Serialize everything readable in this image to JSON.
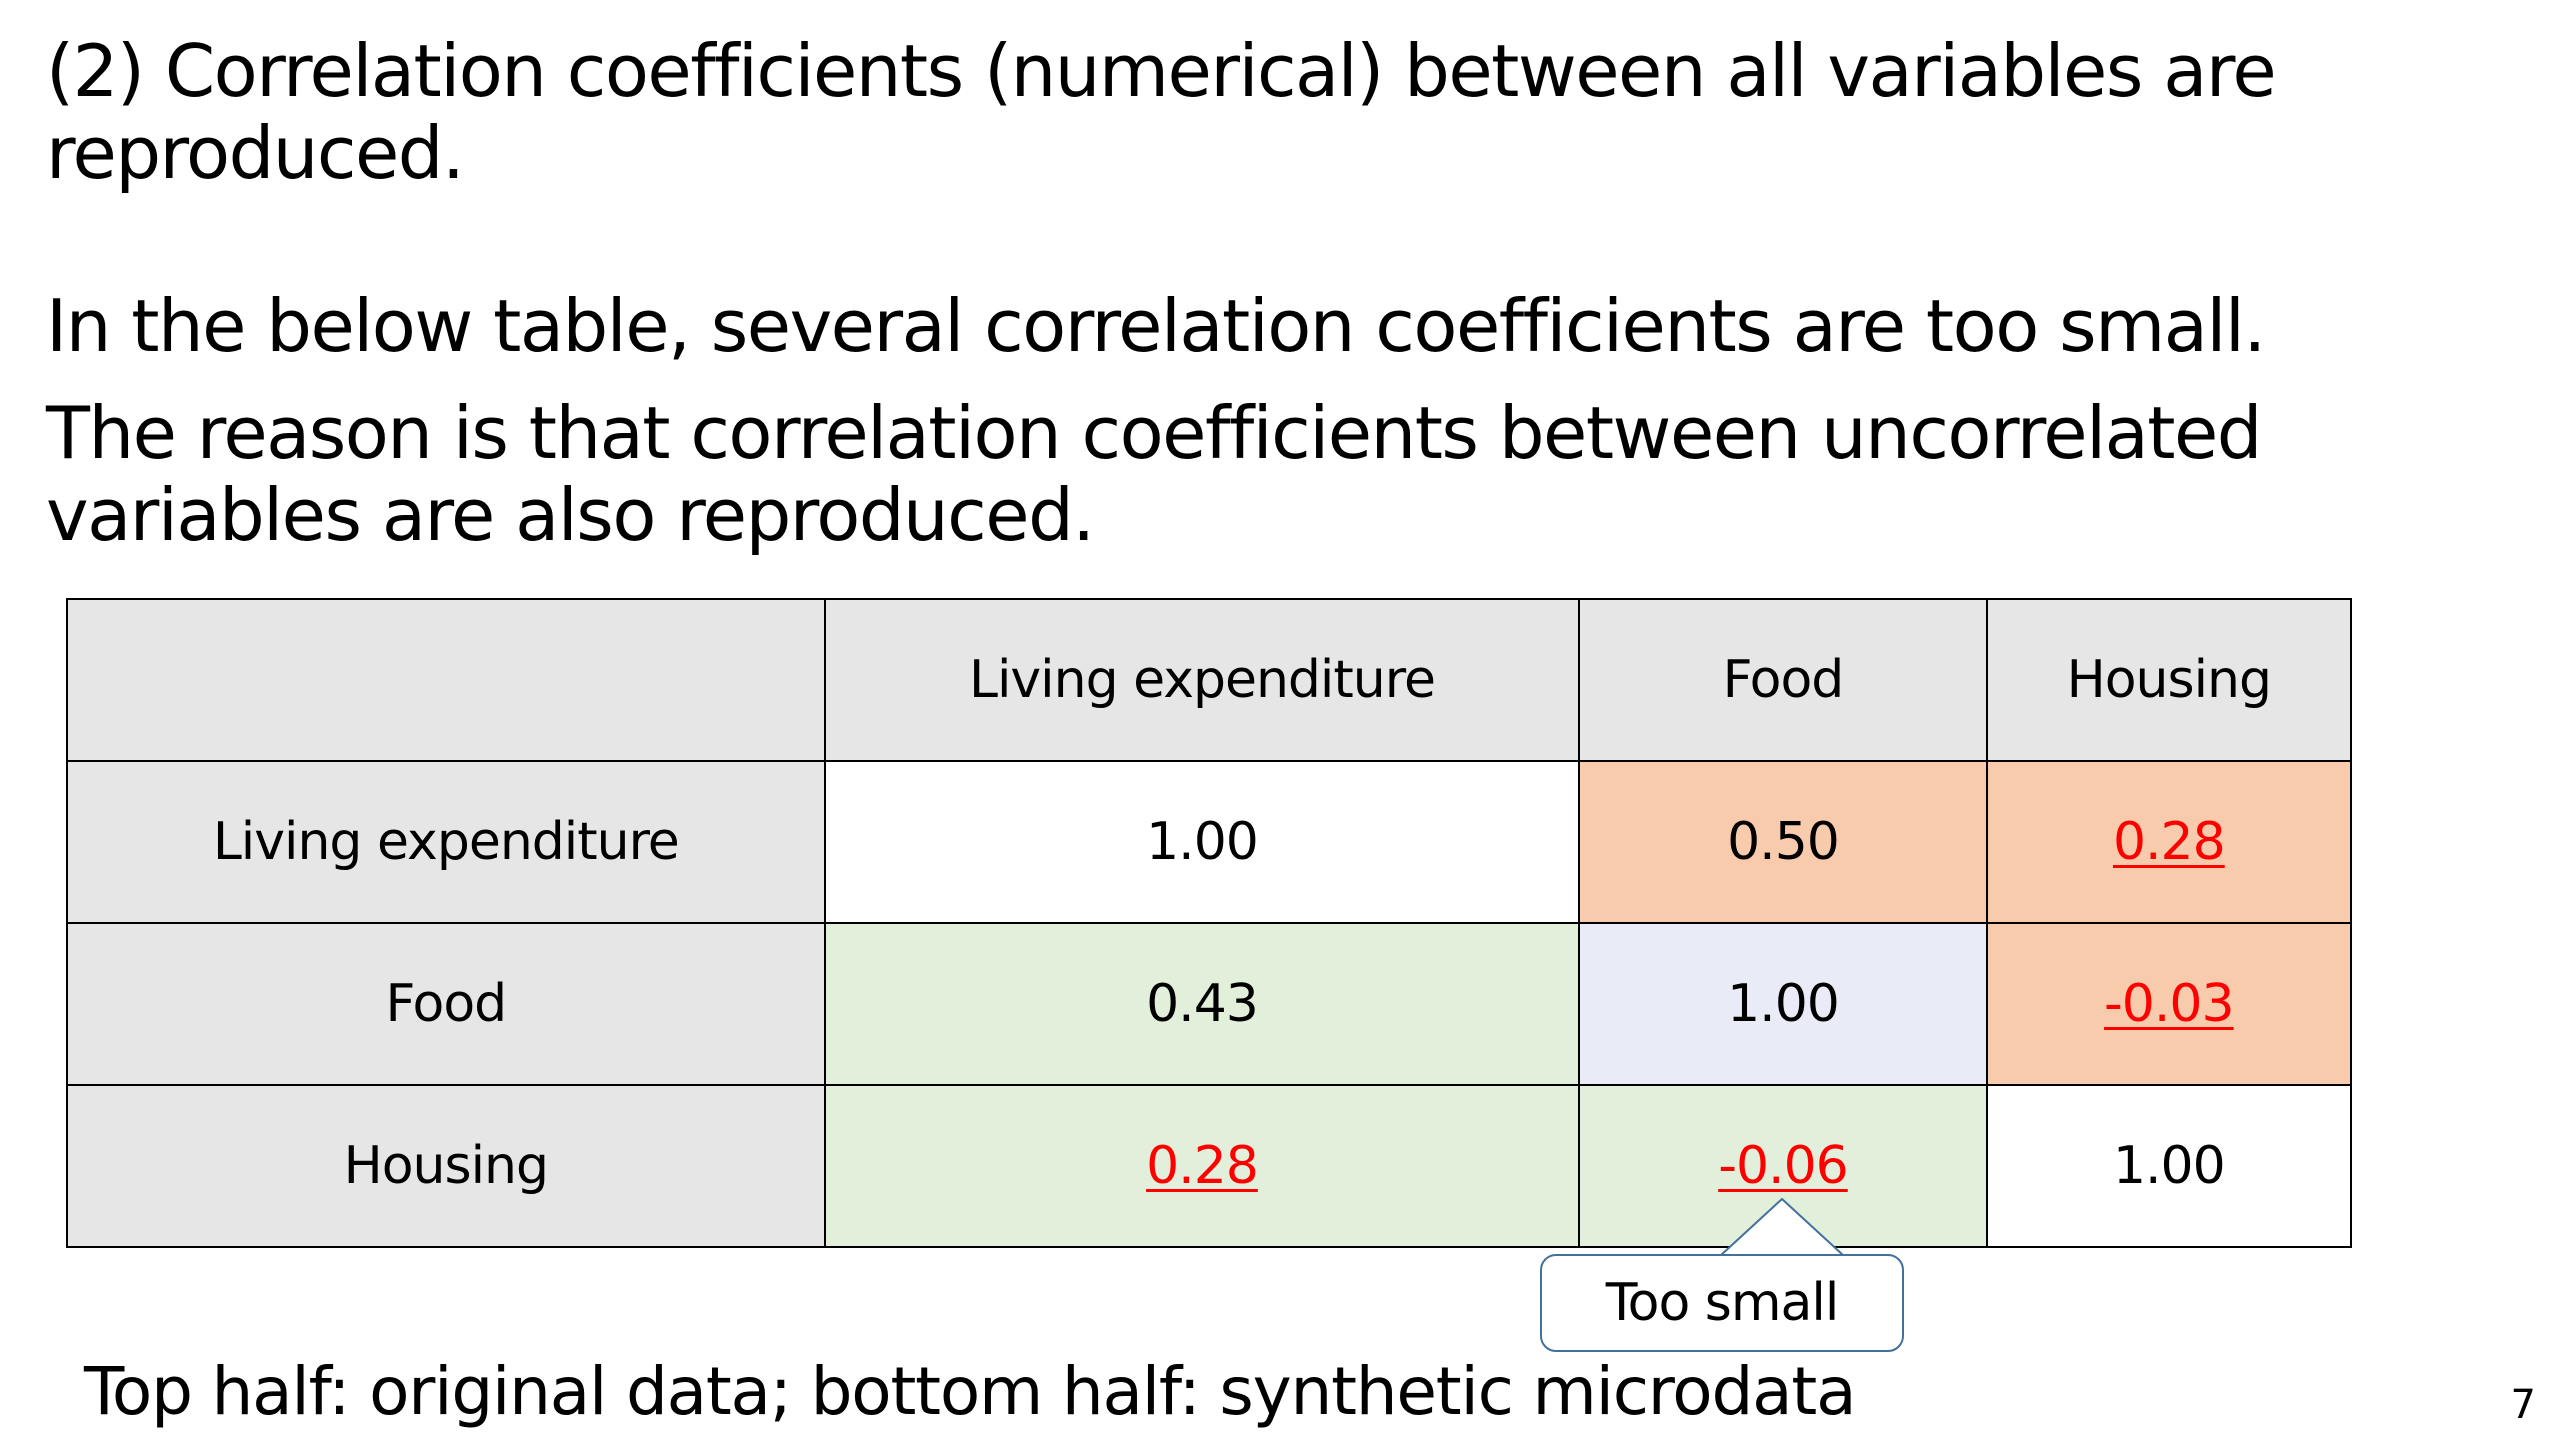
{
  "heading": {
    "line1": "(2) Correlation coefficients (numerical) between all variables are",
    "line2": "reproduced."
  },
  "paragraph1": "In the below table, several correlation coefficients are too small.",
  "paragraph2": {
    "line1": "The reason is that correlation coefficients between uncorrelated",
    "line2": "variables are also reproduced."
  },
  "table": {
    "headers": [
      "",
      "Living expenditure",
      "Food",
      "Housing"
    ],
    "rows": [
      {
        "label": "Living expenditure",
        "cells": [
          "1.00",
          "0.50",
          "0.28"
        ]
      },
      {
        "label": "Food",
        "cells": [
          "0.43",
          "1.00",
          "-0.03"
        ]
      },
      {
        "label": "Housing",
        "cells": [
          "0.28",
          "-0.06",
          "1.00"
        ]
      }
    ],
    "colors": {
      "header_gray": "#e6e6e6",
      "original_orange": "#f7cbac",
      "synthetic_green": "#e2efda",
      "diagonal_blue": "#e9ebf7",
      "highlight_red": "#ff0000"
    }
  },
  "callout": {
    "text": "Too small",
    "border_color": "#41719c"
  },
  "footer": "Top half: original data; bottom half: synthetic microdata",
  "page_number": "7"
}
